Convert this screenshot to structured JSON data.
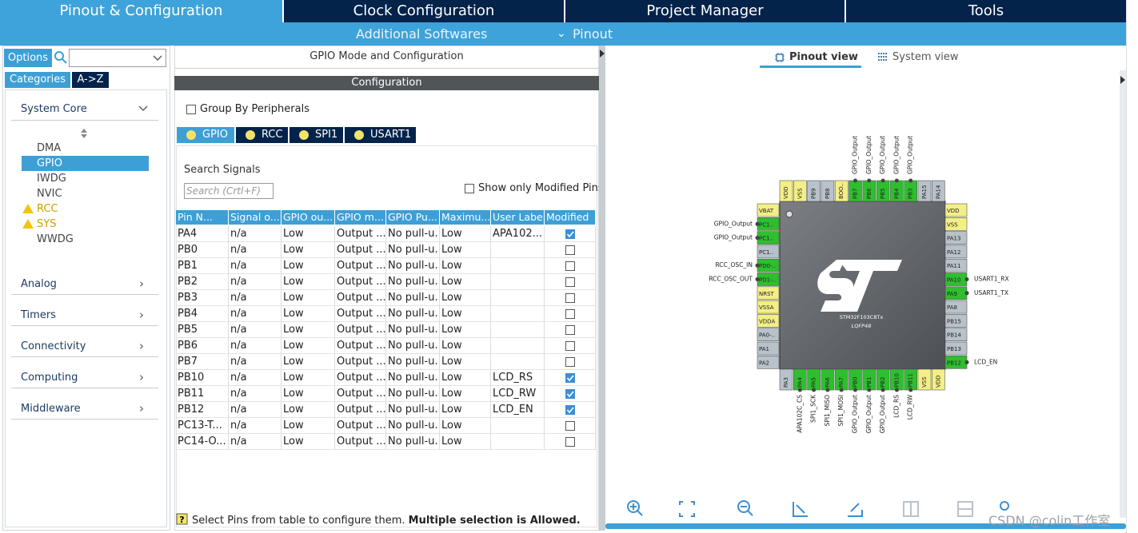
{
  "tabs": [
    "Pinout & Configuration",
    "Clock Configuration",
    "Project Manager",
    "Tools"
  ],
  "subtabs": [
    "Additional Softwares",
    "Pinout"
  ],
  "sidebar": {
    "options": "Options",
    "tabs": [
      "Categories",
      "A->Z"
    ],
    "system_core": {
      "title": "System Core",
      "items": [
        "DMA",
        "GPIO",
        "IWDG",
        "NVIC",
        "RCC",
        "SYS",
        "WWDG"
      ],
      "selected": 1,
      "warnings": [
        4,
        5
      ]
    },
    "categories": [
      "Analog",
      "Timers",
      "Connectivity",
      "Computing",
      "Middleware"
    ]
  },
  "config": {
    "title": "GPIO Mode and Configuration",
    "bar": "Configuration",
    "group_by": "Group By Peripherals",
    "peripherals": [
      "GPIO",
      "RCC",
      "SPI1",
      "USART1"
    ],
    "search_label": "Search Signals",
    "search_placeholder": "Search (Crtl+F)",
    "show_modified": "Show only Modified Pins",
    "table": {
      "headers": [
        "Pin N...",
        "Signal o...",
        "GPIO ou...",
        "GPIO m...",
        "GPIO Pu...",
        "Maximu...",
        "User Label",
        "Modified"
      ],
      "rows": [
        [
          "PA4",
          "n/a",
          "Low",
          "Output ...",
          "No pull-u...",
          "Low",
          "APA102..."
        ],
        [
          "PB0",
          "n/a",
          "Low",
          "Output ...",
          "No pull-u...",
          "Low",
          null
        ],
        [
          "PB1",
          "n/a",
          "Low",
          "Output ...",
          "No pull-u...",
          "Low",
          null
        ],
        [
          "PB2",
          "n/a",
          "Low",
          "Output ...",
          "No pull-u...",
          "Low",
          null
        ],
        [
          "PB3",
          "n/a",
          "Low",
          "Output ...",
          "No pull-u...",
          "Low",
          null
        ],
        [
          "PB4",
          "n/a",
          "Low",
          "Output ...",
          "No pull-u...",
          "Low",
          null
        ],
        [
          "PB5",
          "n/a",
          "Low",
          "Output ...",
          "No pull-u...",
          "Low",
          null
        ],
        [
          "PB6",
          "n/a",
          "Low",
          "Output ...",
          "No pull-u...",
          "Low",
          null
        ],
        [
          "PB7",
          "n/a",
          "Low",
          "Output ...",
          "No pull-u...",
          "Low",
          null
        ],
        [
          "PB10",
          "n/a",
          "Low",
          "Output ...",
          "No pull-u...",
          "Low",
          "LCD_RS"
        ],
        [
          "PB11",
          "n/a",
          "Low",
          "Output ...",
          "No pull-u...",
          "Low",
          "LCD_RW"
        ],
        [
          "PB12",
          "n/a",
          "Low",
          "Output ...",
          "No pull-u...",
          "Low",
          "LCD_EN"
        ],
        [
          "PC13-T...",
          "n/a",
          "Low",
          "Output ...",
          "No pull-u...",
          "Low",
          null
        ],
        [
          "PC14-O...",
          "n/a",
          "Low",
          "Output ...",
          "No pull-u...",
          "Low",
          null
        ]
      ],
      "modified": [
        true,
        false,
        false,
        false,
        false,
        false,
        false,
        false,
        false,
        true,
        true,
        true,
        false,
        false
      ]
    },
    "footer": "Select Pins from table to configure them.",
    "footer_bold": "Multiple selection is Allowed."
  },
  "view_tabs": [
    "Pinout view",
    "System view"
  ],
  "chip": {
    "name": "STM32F103C8Tx",
    "package": "LQFP48",
    "colors": {
      "signal": "#2ebf2e",
      "power": "#f3ef86",
      "free": "#b8c2ca"
    },
    "pins": {
      "top": [
        {
          "name": "VDD",
          "kind": "power"
        },
        {
          "name": "VSS",
          "kind": "power"
        },
        {
          "name": "PB9",
          "kind": "free"
        },
        {
          "name": "PB8",
          "kind": "free"
        },
        {
          "name": "BOO..",
          "kind": "power"
        },
        {
          "name": "PB7",
          "kind": "signal",
          "label": "GPIO_Output"
        },
        {
          "name": "PB6",
          "kind": "signal",
          "label": "GPIO_Output"
        },
        {
          "name": "PB5",
          "kind": "signal",
          "label": "GPIO_Output"
        },
        {
          "name": "PB4",
          "kind": "signal",
          "label": "GPIO_Output"
        },
        {
          "name": "PB3",
          "kind": "signal",
          "label": "GPIO_Output"
        },
        {
          "name": "PA15",
          "kind": "free"
        },
        {
          "name": "PA14",
          "kind": "free"
        }
      ],
      "left": [
        {
          "name": "VBAT",
          "kind": "power"
        },
        {
          "name": "PC1..",
          "kind": "signal",
          "label": "GPIO_Output"
        },
        {
          "name": "PC1..",
          "kind": "signal",
          "label": "GPIO_Output"
        },
        {
          "name": "PC1..",
          "kind": "free"
        },
        {
          "name": "PD0-..",
          "kind": "signal",
          "label": "RCC_OSC_IN"
        },
        {
          "name": "PD1-..",
          "kind": "signal",
          "label": "RCC_OSC_OUT"
        },
        {
          "name": "NRST",
          "kind": "power"
        },
        {
          "name": "VSSA",
          "kind": "power"
        },
        {
          "name": "VDDA",
          "kind": "power"
        },
        {
          "name": "PA0-..",
          "kind": "free"
        },
        {
          "name": "PA1",
          "kind": "free"
        },
        {
          "name": "PA2",
          "kind": "free"
        }
      ],
      "right": [
        {
          "name": "VDD",
          "kind": "power"
        },
        {
          "name": "VSS",
          "kind": "power"
        },
        {
          "name": "PA13",
          "kind": "free"
        },
        {
          "name": "PA12",
          "kind": "free"
        },
        {
          "name": "PA11",
          "kind": "free"
        },
        {
          "name": "PA10",
          "kind": "signal",
          "label": "USART1_RX"
        },
        {
          "name": "PA9",
          "kind": "signal",
          "label": "USART1_TX"
        },
        {
          "name": "PA8",
          "kind": "free"
        },
        {
          "name": "PB15",
          "kind": "free"
        },
        {
          "name": "PB14",
          "kind": "free"
        },
        {
          "name": "PB13",
          "kind": "free"
        },
        {
          "name": "PB12",
          "kind": "signal",
          "label": "LCD_EN"
        }
      ],
      "bottom": [
        {
          "name": "PA3",
          "kind": "free"
        },
        {
          "name": "PA4",
          "kind": "signal",
          "label": "APA102C_CS"
        },
        {
          "name": "PA5",
          "kind": "signal",
          "label": "SPI1_SCK"
        },
        {
          "name": "PA6",
          "kind": "signal",
          "label": "SPI1_MISO"
        },
        {
          "name": "PA7",
          "kind": "signal",
          "label": "SPI1_MOSI"
        },
        {
          "name": "PB0",
          "kind": "signal",
          "label": "GPIO_Output"
        },
        {
          "name": "PB1",
          "kind": "signal",
          "label": "GPIO_Output"
        },
        {
          "name": "PB2",
          "kind": "signal",
          "label": "GPIO_Output"
        },
        {
          "name": "PB10",
          "kind": "signal",
          "label": "LCD_RS"
        },
        {
          "name": "PB11",
          "kind": "signal",
          "label": "LCD_RW"
        },
        {
          "name": "VSS",
          "kind": "power"
        },
        {
          "name": "VDD",
          "kind": "power"
        }
      ]
    }
  },
  "watermark": "CSDN @colin工作室"
}
